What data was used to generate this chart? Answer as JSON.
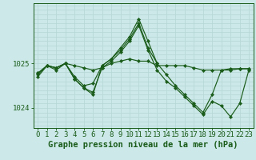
{
  "background_color": "#cce8e8",
  "grid_color_v": "#b8d8d8",
  "grid_color_h": "#b8d8d8",
  "line_color": "#1a5c1a",
  "marker_color": "#1a5c1a",
  "xlabel": "Graphe pression niveau de la mer (hPa)",
  "xlabel_fontsize": 7.5,
  "tick_fontsize": 6.5,
  "xlim": [
    -0.5,
    23.5
  ],
  "ylim": [
    1023.55,
    1026.35
  ],
  "yticks": [
    1024,
    1025
  ],
  "xticks": [
    0,
    1,
    2,
    3,
    4,
    5,
    6,
    7,
    8,
    9,
    10,
    11,
    12,
    13,
    14,
    15,
    16,
    17,
    18,
    19,
    20,
    21,
    22,
    23
  ],
  "lines": [
    {
      "x": [
        0,
        1,
        2,
        3,
        4,
        5,
        6,
        7,
        8,
        9,
        10,
        11,
        12,
        13,
        14,
        15,
        16,
        17,
        18,
        19,
        20,
        21,
        22,
        23
      ],
      "y": [
        1024.75,
        1024.95,
        1024.9,
        1025.0,
        1024.95,
        1024.9,
        1024.85,
        1024.9,
        1025.0,
        1025.05,
        1025.1,
        1025.05,
        1025.05,
        1024.95,
        1024.95,
        1024.95,
        1024.95,
        1024.9,
        1024.85,
        1024.85,
        1024.85,
        1024.85,
        1024.88,
        1024.88
      ]
    },
    {
      "x": [
        0,
        1,
        2,
        3,
        4,
        5,
        6,
        7,
        8,
        9,
        10,
        11,
        12,
        13,
        14,
        15,
        16,
        17,
        18,
        19,
        20,
        21,
        22,
        23
      ],
      "y": [
        1024.78,
        1024.95,
        1024.9,
        1025.0,
        1024.7,
        1024.5,
        1024.55,
        1024.95,
        1025.1,
        1025.35,
        1025.6,
        1026.0,
        1025.5,
        1025.0,
        1024.75,
        1024.5,
        1024.3,
        1024.1,
        1023.9,
        1024.3,
        1024.85,
        1024.88,
        1024.88,
        1024.88
      ]
    },
    {
      "x": [
        0,
        1,
        2,
        3,
        4,
        5,
        6,
        7,
        8,
        9,
        10,
        11,
        12,
        13,
        14,
        15,
        16,
        17,
        18,
        19,
        20,
        21,
        22,
        23
      ],
      "y": [
        1024.7,
        1024.95,
        1024.85,
        1025.0,
        1024.65,
        1024.45,
        1024.35,
        1024.9,
        1025.05,
        1025.25,
        1025.5,
        1025.85,
        1025.3,
        1024.85,
        1024.6,
        1024.45,
        1024.25,
        1024.05,
        1023.85,
        1024.15,
        1024.05,
        1023.8,
        1024.1,
        1024.85
      ]
    },
    {
      "x": [
        0,
        1,
        2,
        3,
        4,
        5,
        6,
        7,
        8,
        9,
        10,
        11,
        12,
        13
      ],
      "y": [
        1024.78,
        1024.95,
        1024.9,
        1025.0,
        1024.65,
        1024.45,
        1024.3,
        1024.95,
        1025.1,
        1025.3,
        1025.55,
        1025.9,
        1025.35,
        1025.0
      ]
    }
  ]
}
